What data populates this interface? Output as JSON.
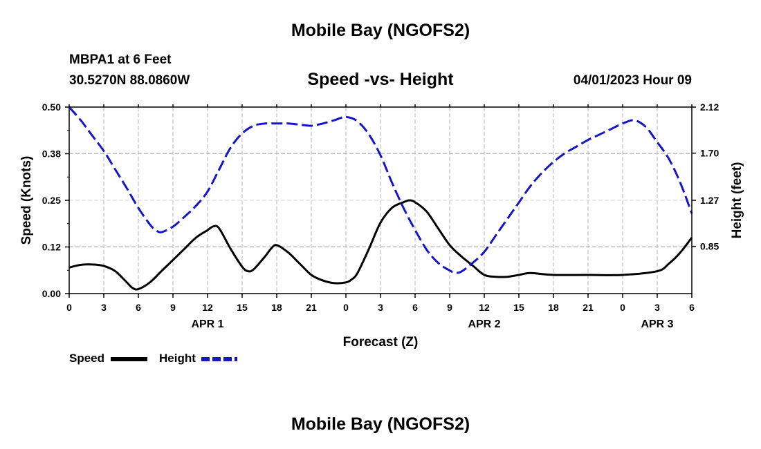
{
  "header": {
    "title": "Mobile Bay (NGOFS2)",
    "station": "MBPA1 at 6 Feet",
    "coords": "30.5270N  88.0860W",
    "chart_title": "Speed -vs- Height",
    "timestamp": "04/01/2023 Hour 09"
  },
  "footer": {
    "title": "Mobile Bay (NGOFS2)"
  },
  "legend": {
    "speed_label": "Speed",
    "height_label": "Height"
  },
  "colors": {
    "speed": "#000000",
    "height": "#1515c8",
    "grid": "#b4b4b4"
  },
  "chart_data": {
    "type": "line",
    "title": "Speed -vs- Height",
    "xlabel": "Forecast (Z)",
    "ylabel": "Speed (Knots)",
    "y2label": "Height (feet)",
    "xlim": [
      0,
      54
    ],
    "ylim": [
      0,
      0.5
    ],
    "y2lim": [
      0.42,
      2.12
    ],
    "x_ticks": [
      0,
      3,
      6,
      9,
      12,
      15,
      18,
      21,
      24,
      27,
      30,
      33,
      36,
      39,
      42,
      45,
      48,
      51,
      54
    ],
    "x_tick_labels": [
      "0",
      "3",
      "6",
      "9",
      "12",
      "15",
      "18",
      "21",
      "0",
      "3",
      "6",
      "9",
      "12",
      "15",
      "18",
      "21",
      "0",
      "3",
      "6"
    ],
    "y_ticks": [
      0.0,
      0.125,
      0.25,
      0.375,
      0.5
    ],
    "y_tick_labels": [
      "0.00",
      "0.12",
      "0.25",
      "0.38",
      "0.50"
    ],
    "y2_ticks": [
      0.85,
      1.27,
      1.7,
      2.12
    ],
    "y2_tick_labels": [
      "0.85",
      "1.27",
      "1.70",
      "2.12"
    ],
    "date_labels": [
      {
        "x": 12,
        "label": "APR 1"
      },
      {
        "x": 36,
        "label": "APR 2"
      },
      {
        "x": 51,
        "label": "APR 3"
      }
    ],
    "grid": true,
    "series": [
      {
        "name": "Speed",
        "axis": "left",
        "style": "solid",
        "x": [
          0,
          1,
          2,
          3,
          4,
          5,
          5.5,
          6,
          7,
          8,
          9,
          10,
          11,
          12,
          12.5,
          13,
          14,
          15,
          15.5,
          16,
          17,
          17.5,
          18,
          19,
          20,
          21,
          22,
          23,
          24,
          24.5,
          25,
          26,
          27,
          28,
          29,
          29.5,
          30,
          31,
          32,
          33,
          34,
          35,
          36,
          37,
          38,
          39,
          40,
          42,
          45,
          48,
          51,
          52,
          53,
          54
        ],
        "values": [
          0.07,
          0.077,
          0.078,
          0.074,
          0.06,
          0.03,
          0.015,
          0.012,
          0.03,
          0.06,
          0.09,
          0.12,
          0.15,
          0.17,
          0.18,
          0.175,
          0.12,
          0.072,
          0.06,
          0.065,
          0.1,
          0.12,
          0.13,
          0.11,
          0.08,
          0.05,
          0.035,
          0.028,
          0.03,
          0.038,
          0.055,
          0.12,
          0.19,
          0.23,
          0.245,
          0.25,
          0.245,
          0.22,
          0.175,
          0.13,
          0.1,
          0.075,
          0.05,
          0.045,
          0.045,
          0.05,
          0.055,
          0.05,
          0.05,
          0.05,
          0.06,
          0.08,
          0.11,
          0.15
        ]
      },
      {
        "name": "Height",
        "axis": "right",
        "style": "dashed",
        "x": [
          0,
          1,
          2,
          3,
          4,
          5,
          6,
          7,
          7.5,
          8,
          9,
          10,
          11,
          12,
          13,
          14,
          15,
          16,
          17,
          18,
          19,
          20,
          21,
          22,
          23,
          24,
          25,
          26,
          27,
          28,
          29,
          30,
          31,
          32,
          33,
          33.5,
          34,
          35,
          36,
          37,
          38,
          39,
          40,
          41,
          42,
          43,
          44,
          45,
          46,
          47,
          48,
          49,
          50,
          51,
          52,
          53,
          54
        ],
        "values": [
          2.12,
          2.0,
          1.86,
          1.72,
          1.55,
          1.38,
          1.2,
          1.05,
          1.0,
          0.98,
          1.03,
          1.12,
          1.22,
          1.35,
          1.55,
          1.75,
          1.88,
          1.95,
          1.97,
          1.97,
          1.97,
          1.96,
          1.95,
          1.97,
          2.0,
          2.03,
          1.99,
          1.87,
          1.68,
          1.43,
          1.2,
          1.0,
          0.82,
          0.7,
          0.63,
          0.61,
          0.62,
          0.7,
          0.8,
          0.95,
          1.1,
          1.25,
          1.4,
          1.52,
          1.62,
          1.7,
          1.76,
          1.82,
          1.87,
          1.92,
          1.97,
          2.0,
          1.94,
          1.8,
          1.65,
          1.43,
          1.15
        ]
      }
    ]
  }
}
